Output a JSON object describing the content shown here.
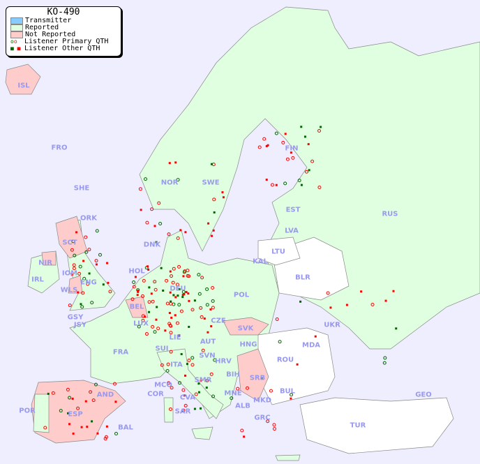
{
  "legend": {
    "title": "KO-490",
    "items": [
      {
        "label": "Transmitter",
        "color": "#88ccff"
      },
      {
        "label": "Reported",
        "color": "#e0ffe0"
      },
      {
        "label": "Not Reported",
        "color": "#ffcccc"
      },
      {
        "label": "Listener Primary QTH",
        "colors": [
          "#006600",
          "#ff0000"
        ],
        "marker": "circle"
      },
      {
        "label": "Listener Other QTH",
        "colors": [
          "#006600",
          "#ff0000"
        ],
        "marker": "square"
      }
    ]
  },
  "colors": {
    "sea": "#eeeeff",
    "reported": "#e0ffe0",
    "not_reported": "#ffcccc",
    "other": "#ffffff",
    "label": "#9999ee"
  },
  "countries": [
    "ISL",
    "FRO",
    "SHE",
    "ORK",
    "NOR",
    "SWE",
    "FIN",
    "EST",
    "LVA",
    "LTU",
    "KAL",
    "BLR",
    "RUS",
    "UKR",
    "MDA",
    "ROU",
    "BUL",
    "TUR",
    "GEO",
    "POL",
    "DNK",
    "HOL",
    "BEL",
    "LUX",
    "DEU",
    "CZE",
    "SVK",
    "HNG",
    "AUT",
    "SUI",
    "LIE",
    "FRA",
    "GSY",
    "JSY",
    "IRL",
    "NIR",
    "SCT",
    "IOM",
    "WLS",
    "ENG",
    "AND",
    "ESP",
    "POR",
    "BAL",
    "COR",
    "MCO",
    "ITA",
    "SVN",
    "HRV",
    "BIH",
    "SRB",
    "MNE",
    "ALB",
    "MKD",
    "GRC",
    "SAR",
    "CVA",
    "SMR"
  ]
}
